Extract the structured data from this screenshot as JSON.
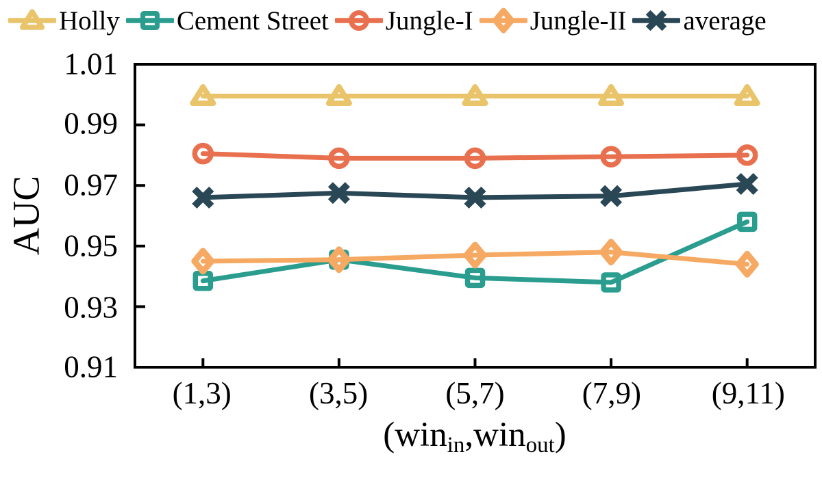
{
  "chart_data": {
    "type": "line",
    "title": "",
    "categories": [
      "(1,3)",
      "(3,5)",
      "(5,7)",
      "(7,9)",
      "(9,11)"
    ],
    "x_axis": {
      "label_plain": "(win_in,win_out)",
      "label_parts": {
        "open": "(win",
        "sub_in": "in",
        "mid": ",win",
        "sub_out": "out",
        "close": ")"
      }
    },
    "y_axis": {
      "label": "AUC",
      "min": 0.91,
      "max": 1.01,
      "tick_step": 0.02,
      "tick_labels_top_to_bottom": [
        "1.01",
        "0.99",
        "0.97",
        "0.95",
        "0.93",
        "0.91"
      ]
    },
    "series": [
      {
        "name": "Holly",
        "color": "#E9C46A",
        "marker": "triangle",
        "values": [
          0.9995,
          0.9995,
          0.9995,
          0.9995,
          0.9995
        ]
      },
      {
        "name": "Cement Street",
        "color": "#2A9D8F",
        "marker": "square",
        "values": [
          0.9385,
          0.9455,
          0.9395,
          0.938,
          0.958
        ]
      },
      {
        "name": "Jungle-I",
        "color": "#E8704F",
        "marker": "circle",
        "values": [
          0.9805,
          0.979,
          0.979,
          0.9795,
          0.98
        ]
      },
      {
        "name": "Jungle-II",
        "color": "#F6A963",
        "marker": "diamond",
        "values": [
          0.945,
          0.9455,
          0.947,
          0.948,
          0.944
        ]
      },
      {
        "name": "average",
        "color": "#2A4756",
        "marker": "x",
        "values": [
          0.966,
          0.9675,
          0.966,
          0.9665,
          0.9705
        ]
      }
    ],
    "layout": {
      "legend_position": "top",
      "grid": false,
      "frame": "box",
      "tick_direction": "in",
      "background": "#FFFFFF",
      "axis_color": "#000000",
      "text_color": "#000000"
    }
  }
}
